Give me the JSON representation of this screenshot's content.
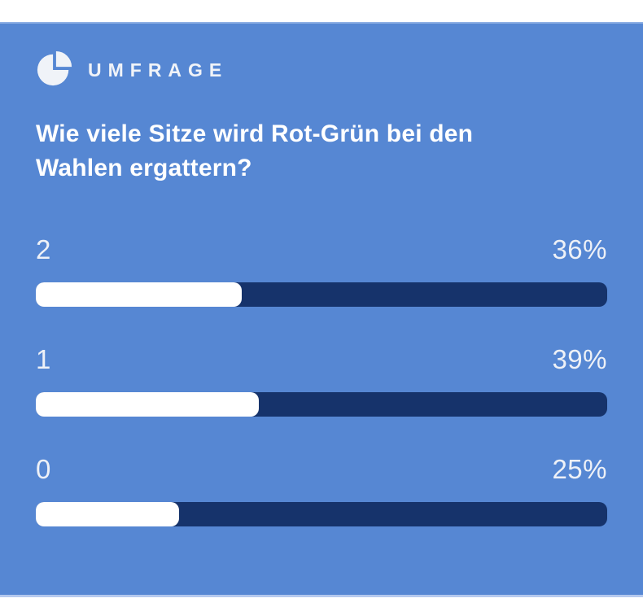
{
  "poll": {
    "kicker_label": "UMFRAGE",
    "question": "Wie viele Sitze wird Rot-Grün bei den Wahlen ergattern?",
    "options": [
      {
        "label": "2",
        "percent_label": "36%",
        "percent_value": 36
      },
      {
        "label": "1",
        "percent_label": "39%",
        "percent_value": 39
      },
      {
        "label": "0",
        "percent_label": "25%",
        "percent_value": 25
      }
    ]
  },
  "colors": {
    "card_background": "#5687d3",
    "bar_track": "#16336b",
    "bar_fill": "#ffffff",
    "heading_text": "#ffffff",
    "label_text": "#eef1f7",
    "page_background": "#ffffff"
  },
  "icons": {
    "kicker": "pie-chart-icon"
  },
  "chart_data": {
    "type": "bar",
    "orientation": "horizontal",
    "kicker": "UMFRAGE",
    "title": "Wie viele Sitze wird Rot-Grün bei den Wahlen ergattern?",
    "categories": [
      "2",
      "1",
      "0"
    ],
    "values": [
      36,
      39,
      25
    ],
    "value_labels": [
      "36%",
      "39%",
      "25%"
    ],
    "unit": "%",
    "xlim": [
      0,
      100
    ],
    "grid": false,
    "legend": false
  }
}
